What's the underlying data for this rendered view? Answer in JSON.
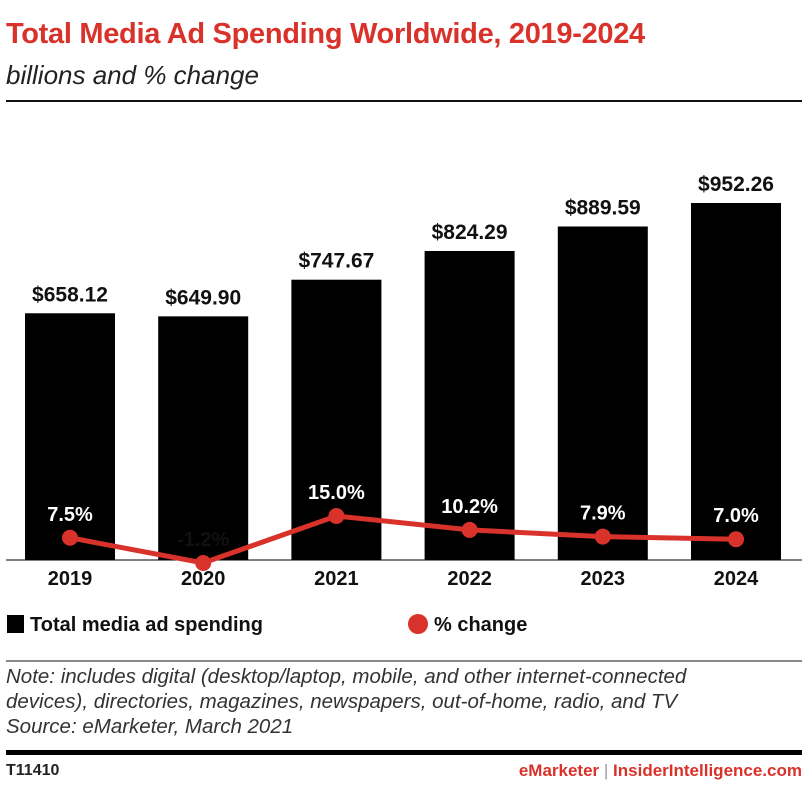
{
  "chart_data": {
    "type": "bar",
    "title": "Total Media Ad Spending Worldwide, 2019-2024",
    "subtitle": "billions and % change",
    "categories": [
      "2019",
      "2020",
      "2021",
      "2022",
      "2023",
      "2024"
    ],
    "series": [
      {
        "name": "Total media ad spending",
        "type": "bar",
        "color": "#000000",
        "values": [
          658.12,
          649.9,
          747.67,
          824.29,
          889.59,
          952.26
        ],
        "labels": [
          "$658.12",
          "$649.90",
          "$747.67",
          "$824.29",
          "$889.59",
          "$952.26"
        ]
      },
      {
        "name": "% change",
        "type": "line",
        "color": "#d8322b",
        "values": [
          7.5,
          -1.2,
          15.0,
          10.2,
          7.9,
          7.0
        ],
        "labels": [
          "7.5%",
          "-1.2%",
          "15.0%",
          "10.2%",
          "7.9%",
          "7.0%"
        ]
      }
    ],
    "ylim": [
      0,
      952.26
    ],
    "grid": false,
    "legend_position": "bottom"
  },
  "note": [
    "Note: includes digital (desktop/laptop, mobile, and other internet-connected",
    "devices), directories, magazines, newspapers, out-of-home, radio, and TV",
    "Source: eMarketer, March 2021"
  ],
  "footer": {
    "code": "T11410",
    "brand1": "eMarketer",
    "separator": "|",
    "brand2": "InsiderIntelligence.com"
  },
  "colors": {
    "accent": "#d8322b",
    "bar": "#000000"
  }
}
